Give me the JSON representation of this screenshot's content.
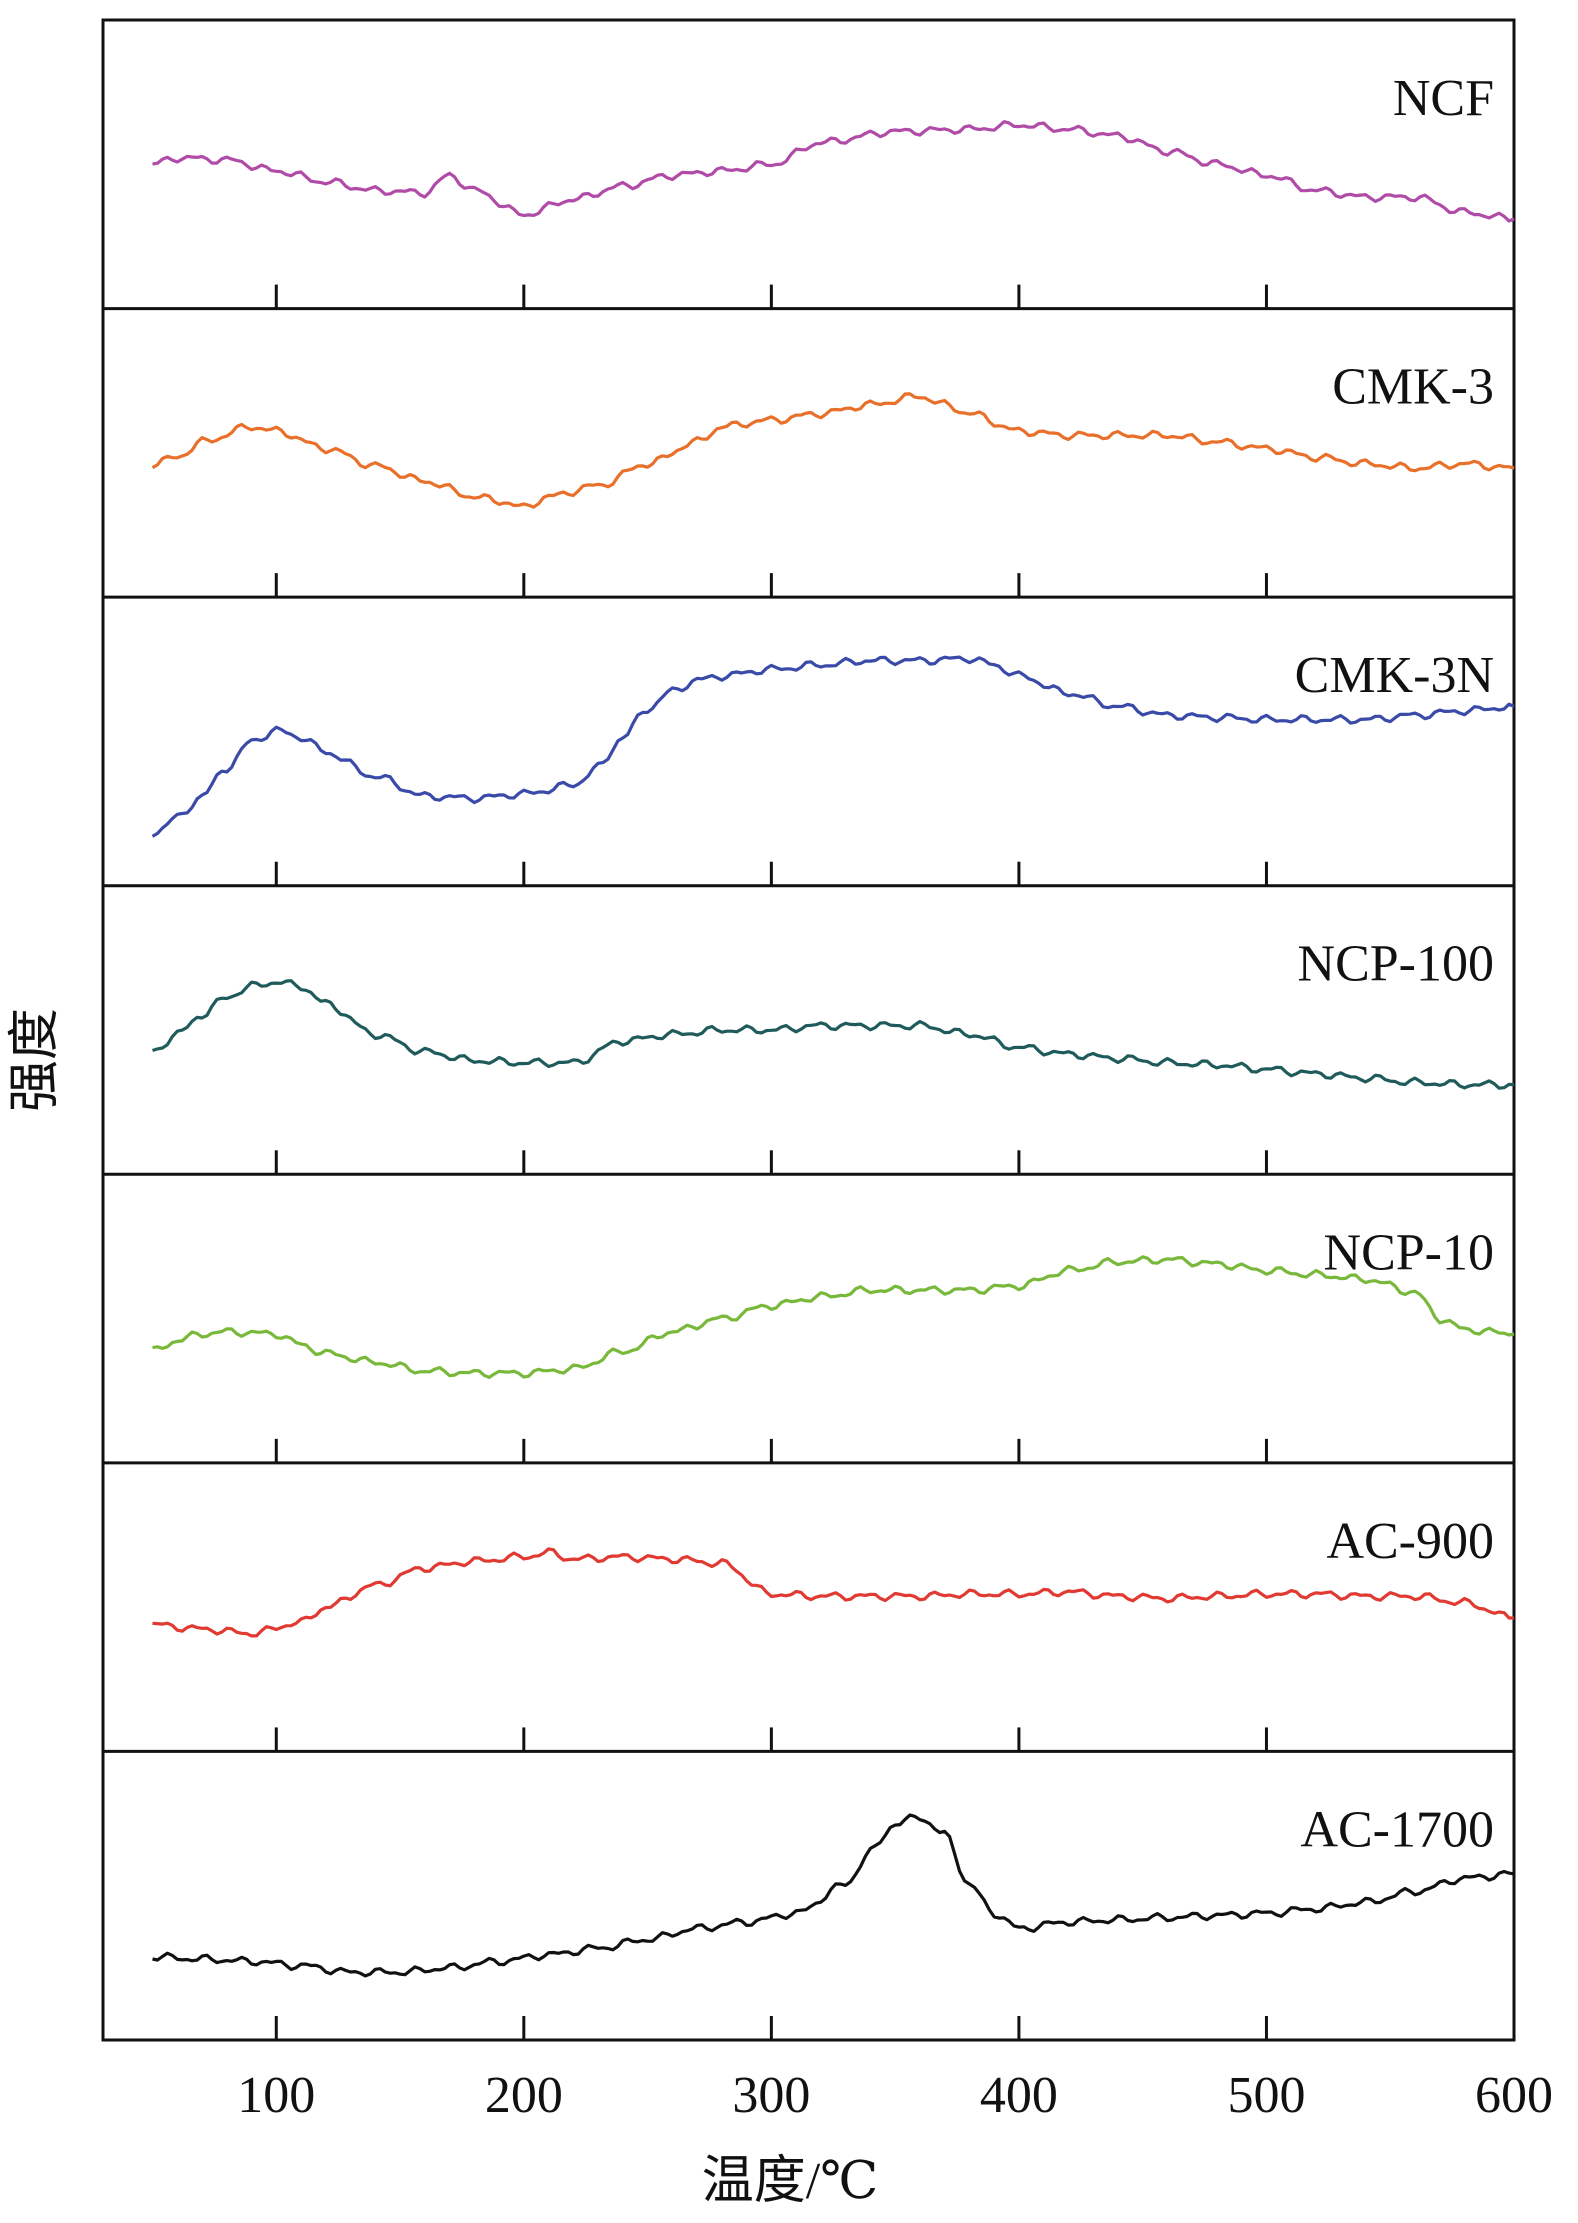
{
  "chart_data": {
    "type": "line",
    "xlabel": "温度/℃",
    "ylabel": "强度",
    "xlim": [
      30,
      600
    ],
    "xticks": [
      100,
      200,
      300,
      400,
      500,
      600
    ],
    "stacked_panels": true,
    "grid": false,
    "y_unit": "normalized intensity (0–1 within panel, no ticks shown)",
    "series": [
      {
        "name": "NCF",
        "color": "#b04ca8",
        "x": [
          50,
          60,
          80,
          100,
          120,
          140,
          160,
          170,
          180,
          200,
          220,
          240,
          260,
          280,
          300,
          320,
          350,
          380,
          400,
          420,
          440,
          460,
          480,
          500,
          520,
          540,
          560,
          580,
          600
        ],
        "y": [
          0.5,
          0.53,
          0.52,
          0.47,
          0.42,
          0.38,
          0.37,
          0.45,
          0.38,
          0.27,
          0.34,
          0.4,
          0.45,
          0.47,
          0.5,
          0.6,
          0.65,
          0.66,
          0.68,
          0.66,
          0.63,
          0.56,
          0.5,
          0.45,
          0.38,
          0.35,
          0.35,
          0.28,
          0.25
        ]
      },
      {
        "name": "CMK-3",
        "color": "#e8702a",
        "x": [
          50,
          60,
          70,
          90,
          100,
          120,
          140,
          160,
          180,
          190,
          200,
          210,
          230,
          250,
          270,
          280,
          300,
          320,
          340,
          360,
          370,
          380,
          400,
          420,
          440,
          460,
          480,
          500,
          520,
          540,
          560,
          580,
          600
        ],
        "y": [
          0.45,
          0.48,
          0.55,
          0.62,
          0.6,
          0.52,
          0.44,
          0.37,
          0.3,
          0.28,
          0.25,
          0.3,
          0.35,
          0.45,
          0.55,
          0.62,
          0.65,
          0.68,
          0.72,
          0.76,
          0.72,
          0.68,
          0.6,
          0.58,
          0.58,
          0.58,
          0.55,
          0.52,
          0.48,
          0.45,
          0.43,
          0.45,
          0.43
        ]
      },
      {
        "name": "CMK-3N",
        "color": "#3a4aa8",
        "x": [
          50,
          60,
          70,
          80,
          90,
          100,
          110,
          120,
          140,
          160,
          180,
          200,
          220,
          230,
          240,
          250,
          260,
          270,
          280,
          300,
          320,
          340,
          360,
          380,
          390,
          400,
          420,
          440,
          460,
          480,
          500,
          520,
          540,
          560,
          580,
          600
        ],
        "y": [
          0.08,
          0.15,
          0.25,
          0.38,
          0.5,
          0.55,
          0.52,
          0.45,
          0.34,
          0.25,
          0.24,
          0.26,
          0.3,
          0.38,
          0.52,
          0.65,
          0.73,
          0.78,
          0.8,
          0.83,
          0.85,
          0.87,
          0.87,
          0.88,
          0.85,
          0.8,
          0.72,
          0.66,
          0.62,
          0.61,
          0.6,
          0.6,
          0.6,
          0.62,
          0.64,
          0.66
        ]
      },
      {
        "name": "NCP-100",
        "color": "#1f5b5a",
        "x": [
          50,
          60,
          70,
          80,
          90,
          100,
          110,
          120,
          140,
          160,
          180,
          200,
          220,
          240,
          260,
          280,
          300,
          320,
          340,
          360,
          380,
          400,
          420,
          440,
          460,
          480,
          500,
          520,
          540,
          560,
          580,
          600
        ],
        "y": [
          0.4,
          0.48,
          0.57,
          0.65,
          0.7,
          0.72,
          0.7,
          0.62,
          0.48,
          0.4,
          0.36,
          0.35,
          0.35,
          0.45,
          0.48,
          0.5,
          0.5,
          0.52,
          0.52,
          0.52,
          0.48,
          0.42,
          0.39,
          0.37,
          0.35,
          0.34,
          0.32,
          0.3,
          0.28,
          0.26,
          0.25,
          0.25
        ]
      },
      {
        "name": "NCP-10",
        "color": "#78b83a",
        "x": [
          50,
          60,
          70,
          80,
          100,
          110,
          120,
          140,
          160,
          180,
          200,
          220,
          240,
          260,
          280,
          300,
          320,
          340,
          360,
          380,
          400,
          420,
          440,
          460,
          480,
          500,
          520,
          540,
          560,
          570,
          580,
          600
        ],
        "y": [
          0.35,
          0.4,
          0.43,
          0.44,
          0.43,
          0.38,
          0.34,
          0.3,
          0.26,
          0.25,
          0.25,
          0.27,
          0.35,
          0.44,
          0.5,
          0.56,
          0.6,
          0.63,
          0.63,
          0.63,
          0.65,
          0.72,
          0.76,
          0.77,
          0.75,
          0.72,
          0.7,
          0.68,
          0.62,
          0.5,
          0.45,
          0.43
        ]
      },
      {
        "name": "AC-900",
        "color": "#e03a32",
        "x": [
          50,
          70,
          90,
          110,
          120,
          140,
          160,
          180,
          200,
          210,
          220,
          240,
          260,
          280,
          300,
          320,
          340,
          360,
          380,
          400,
          420,
          440,
          460,
          480,
          500,
          520,
          540,
          560,
          580,
          600
        ],
        "y": [
          0.42,
          0.4,
          0.38,
          0.43,
          0.5,
          0.6,
          0.68,
          0.71,
          0.73,
          0.75,
          0.72,
          0.73,
          0.72,
          0.7,
          0.56,
          0.55,
          0.55,
          0.55,
          0.56,
          0.56,
          0.57,
          0.55,
          0.54,
          0.55,
          0.56,
          0.56,
          0.55,
          0.55,
          0.52,
          0.45
        ]
      },
      {
        "name": "AC-1700",
        "color": "#111111",
        "x": [
          50,
          70,
          90,
          110,
          130,
          150,
          170,
          190,
          210,
          230,
          250,
          270,
          290,
          310,
          330,
          340,
          350,
          360,
          370,
          380,
          390,
          400,
          420,
          440,
          460,
          480,
          500,
          520,
          540,
          560,
          580,
          600
        ],
        "y": [
          0.22,
          0.21,
          0.2,
          0.18,
          0.15,
          0.15,
          0.17,
          0.2,
          0.23,
          0.26,
          0.3,
          0.35,
          0.38,
          0.42,
          0.55,
          0.7,
          0.83,
          0.86,
          0.78,
          0.55,
          0.42,
          0.35,
          0.38,
          0.39,
          0.4,
          0.41,
          0.42,
          0.44,
          0.47,
          0.52,
          0.58,
          0.6
        ]
      }
    ]
  }
}
